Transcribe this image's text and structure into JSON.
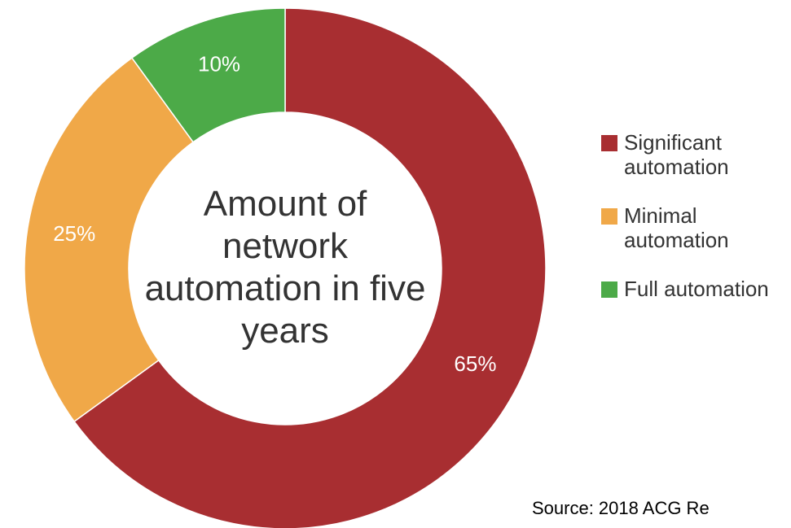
{
  "chart_data": {
    "type": "donut",
    "title": "Amount of network automation in five years",
    "categories": [
      "Significant automation",
      "Minimal automation",
      "Full automation"
    ],
    "values": [
      65,
      25,
      10
    ],
    "value_labels": [
      "65%",
      "25%",
      "10%"
    ],
    "colors": [
      "#a82e31",
      "#f0a848",
      "#4caa48"
    ],
    "legend": "right",
    "source": "Source:  2018 ACG Re"
  }
}
